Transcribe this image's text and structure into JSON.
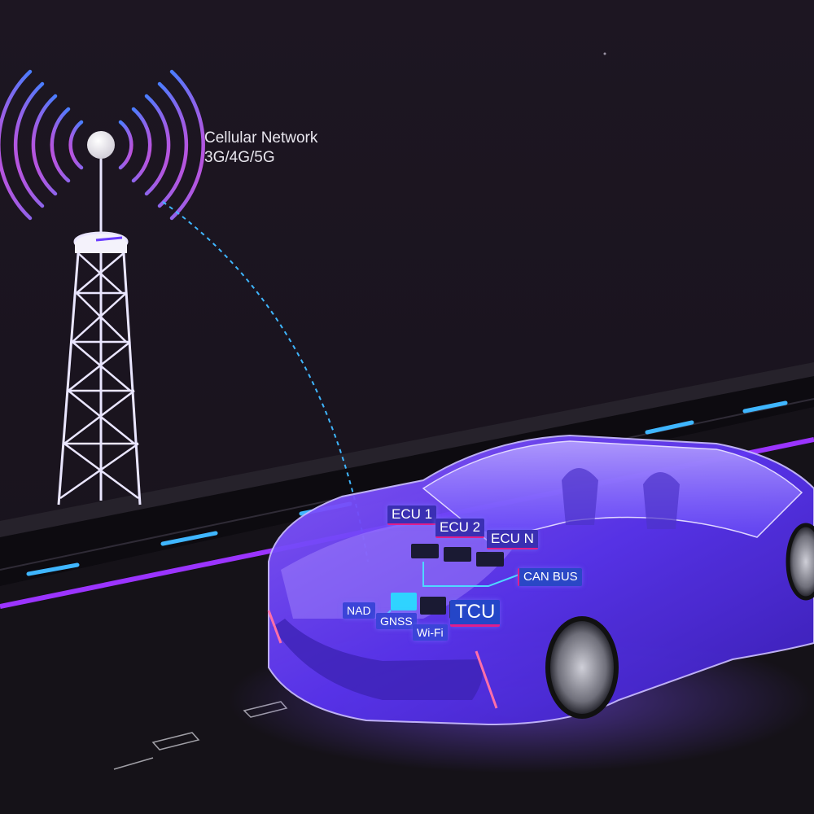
{
  "network": {
    "title": "Cellular Network",
    "subtitle": "3G/4G/5G"
  },
  "car_labels": {
    "ecu1": "ECU 1",
    "ecu2": "ECU 2",
    "ecun": "ECU N",
    "can_bus": "CAN BUS",
    "tcu": "TCU",
    "nad": "NAD",
    "gnss": "GNSS",
    "wifi": "Wi-Fi"
  },
  "colors": {
    "background": "#1b1520",
    "road": "#141116",
    "lane_dash": "#3fb6ff",
    "road_edge": "#9b34ff",
    "tower": "#eae6ff",
    "signal_inner": "#d24fd8",
    "signal_outer": "#4d7cff",
    "car_body": "#6b3dff",
    "tag_ecu": "#3a2fb3",
    "tag_tcu": "#2446c8"
  },
  "icons": [
    "cell-tower-icon",
    "signal-waves-icon",
    "connected-car-icon"
  ]
}
